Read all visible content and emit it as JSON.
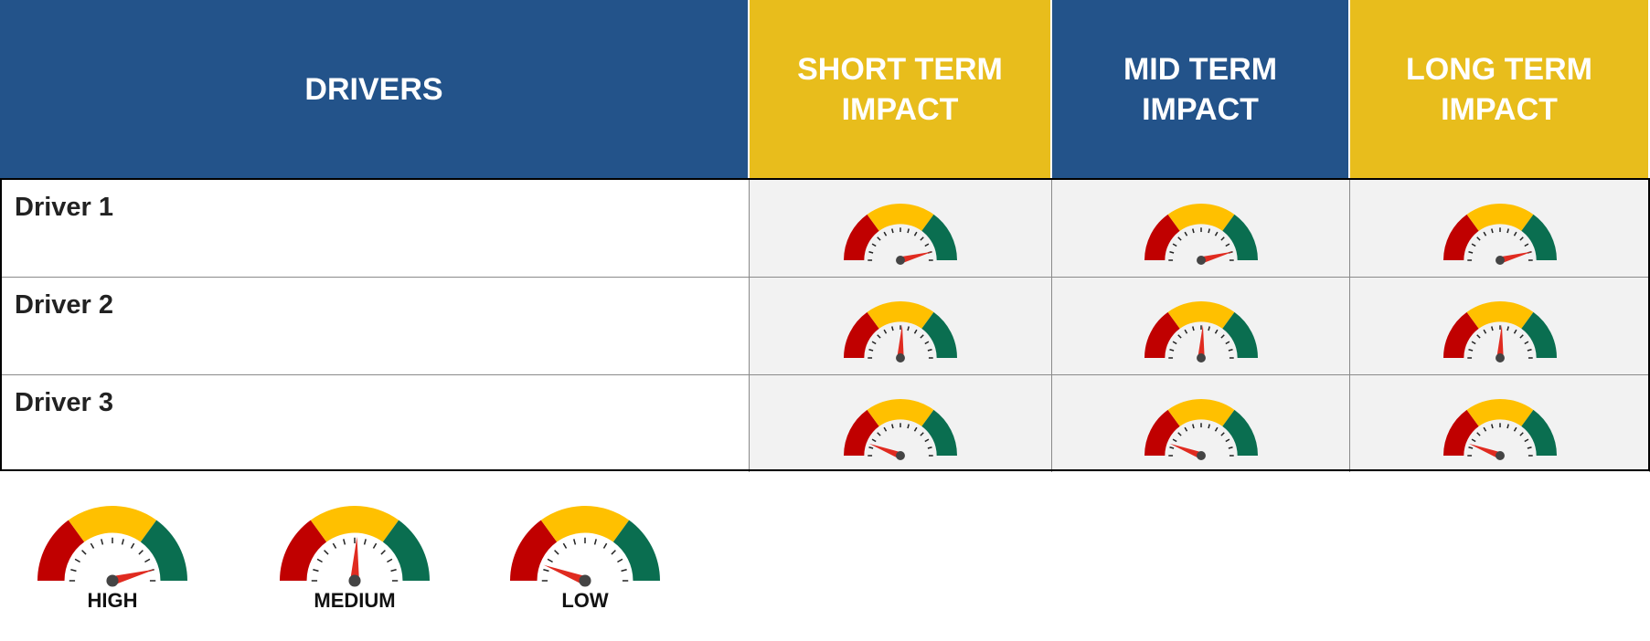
{
  "header": {
    "drivers": "DRIVERS",
    "columns": [
      "SHORT TERM IMPACT",
      "MID TERM IMPACT",
      "LONG TERM IMPACT"
    ]
  },
  "rows": [
    {
      "label": "Driver 1",
      "impact": [
        "HIGH",
        "HIGH",
        "HIGH"
      ]
    },
    {
      "label": "Driver 2",
      "impact": [
        "MEDIUM",
        "MEDIUM",
        "MEDIUM"
      ]
    },
    {
      "label": "Driver 3",
      "impact": [
        "LOW",
        "LOW",
        "LOW"
      ]
    }
  ],
  "legend": [
    "HIGH",
    "MEDIUM",
    "LOW"
  ]
}
